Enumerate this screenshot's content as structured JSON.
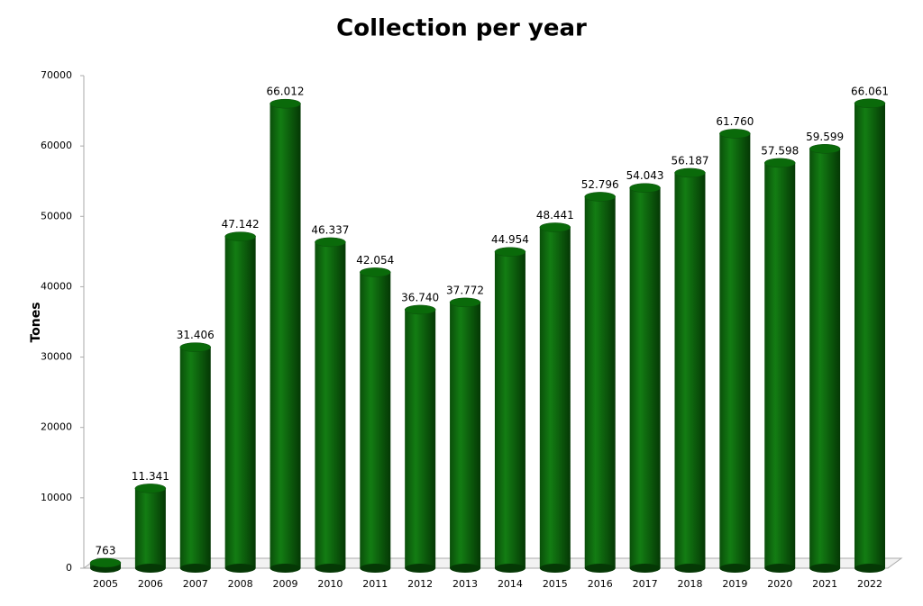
{
  "chart_data": {
    "type": "bar",
    "title": "Collection per year",
    "y_label": "Tones",
    "categories": [
      "2005",
      "2006",
      "2007",
      "2008",
      "2009",
      "2010",
      "2011",
      "2012",
      "2013",
      "2014",
      "2015",
      "2016",
      "2017",
      "2018",
      "2019",
      "2020",
      "2021",
      "2022"
    ],
    "values": [
      763,
      11341,
      31406,
      47142,
      66012,
      46337,
      42054,
      36740,
      37772,
      44954,
      48441,
      52796,
      54043,
      56187,
      61760,
      57598,
      59599,
      66061
    ],
    "value_labels": [
      "763",
      "11.341",
      "31.406",
      "47.142",
      "66.012",
      "46.337",
      "42.054",
      "36.740",
      "37.772",
      "44.954",
      "48.441",
      "52.796",
      "54.043",
      "56.187",
      "61.760",
      "57.598",
      "59.599",
      "66.061"
    ],
    "color": "#0a6a0a",
    "ylim": [
      0,
      70000
    ],
    "yticks": [
      0,
      10000,
      20000,
      30000,
      40000,
      50000,
      60000,
      70000
    ]
  }
}
